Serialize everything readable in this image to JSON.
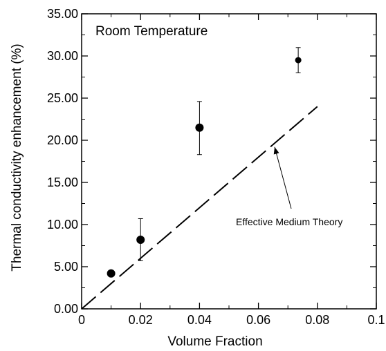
{
  "chart_data": {
    "type": "scatter",
    "title": "Room Temperature",
    "xlabel": "Volume Fraction",
    "ylabel": "Thermal conductivity enhancement (%)",
    "xlim": [
      0,
      0.1
    ],
    "ylim": [
      0,
      35
    ],
    "xticks": [
      0,
      0.02,
      0.04,
      0.06,
      0.08,
      0.1
    ],
    "xtick_labels": [
      "0",
      "0.02",
      "0.04",
      "0.06",
      "0.08",
      "0.1"
    ],
    "yticks": [
      0,
      5,
      10,
      15,
      20,
      25,
      30,
      35
    ],
    "ytick_labels": [
      "0.00",
      "5.00",
      "10.00",
      "15.00",
      "20.00",
      "25.00",
      "30.00",
      "35.00"
    ],
    "grid": false,
    "series": [
      {
        "type": "scatter",
        "x": [
          0.01,
          0.02,
          0.04,
          0.0735
        ],
        "y": [
          4.2,
          8.2,
          21.5,
          29.5
        ],
        "yerr_low": [
          3.9,
          5.7,
          18.3,
          28.0
        ],
        "yerr_high": [
          4.5,
          10.7,
          24.6,
          31.0
        ],
        "color": "#000000"
      },
      {
        "type": "line",
        "name": "Effective Medium Theory",
        "style": "dashed",
        "x": [
          0,
          0.08
        ],
        "y": [
          0,
          24.0
        ],
        "color": "#000000"
      }
    ],
    "annotations": [
      {
        "text": "Effective Medium Theory",
        "points_to": {
          "x": 0.0655,
          "y": 19.2
        }
      }
    ]
  }
}
